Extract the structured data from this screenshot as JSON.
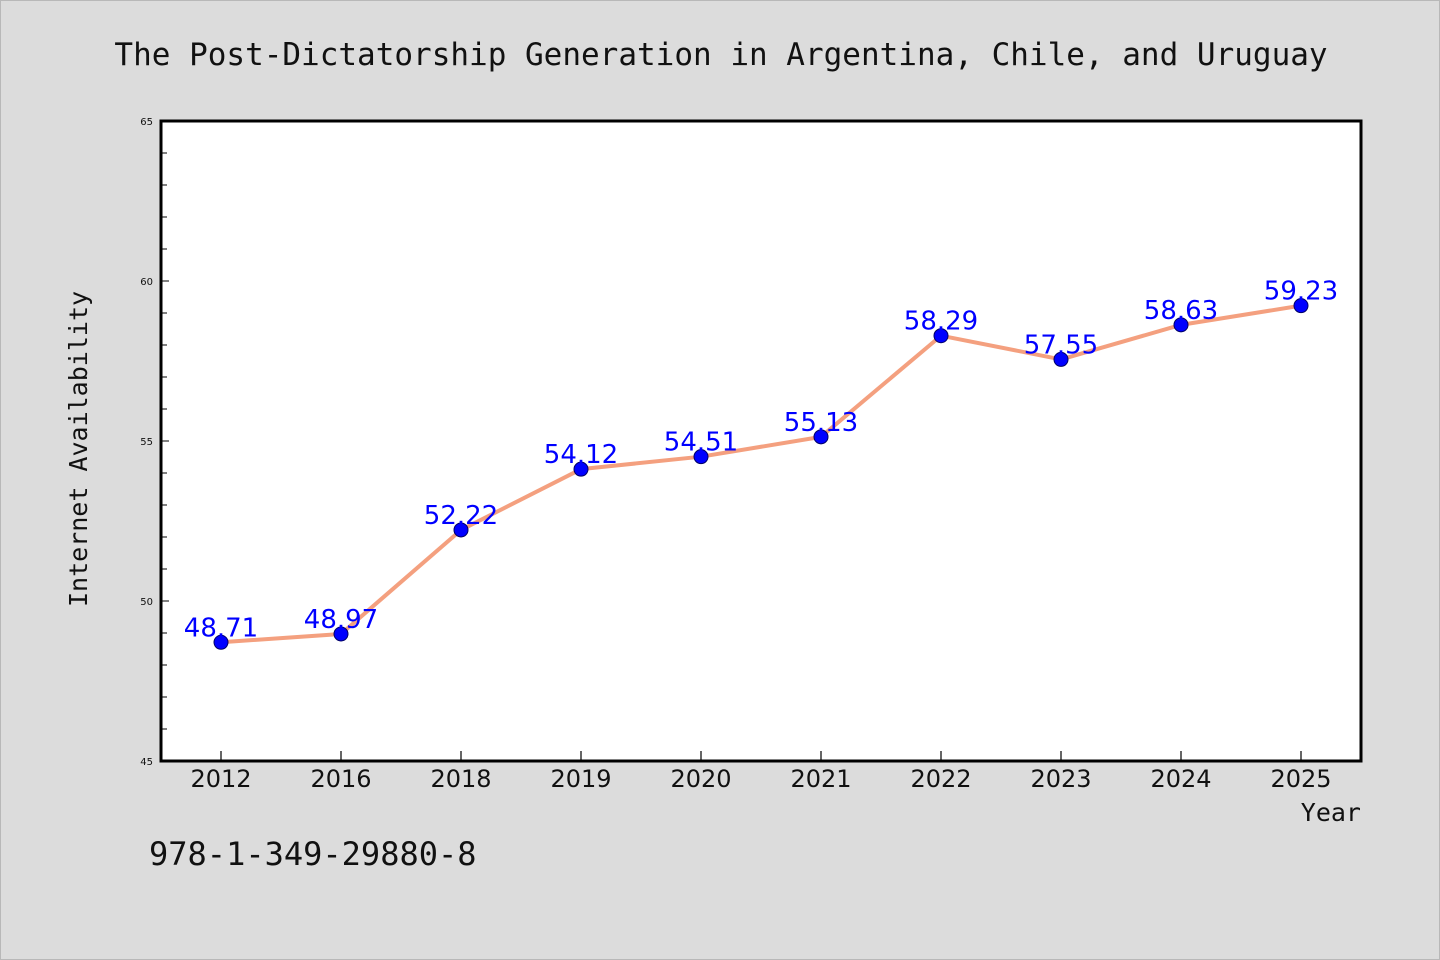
{
  "chart_data": {
    "type": "line",
    "title": "The Post-Dictatorship Generation in Argentina, Chile, and Uruguay",
    "xlabel": "Year",
    "ylabel": "Internet Availability",
    "categories": [
      "2012",
      "2016",
      "2018",
      "2019",
      "2020",
      "2021",
      "2022",
      "2023",
      "2024",
      "2025"
    ],
    "series": [
      {
        "values": [
          48.71,
          48.97,
          52.22,
          54.12,
          54.51,
          55.13,
          58.29,
          57.55,
          58.63,
          59.23
        ],
        "labels": [
          "48.71",
          "48.97",
          "52.22",
          "54.12",
          "54.51",
          "55.13",
          "58.29",
          "57.55",
          "58.63",
          "59.23"
        ]
      }
    ],
    "ylim": [
      45,
      65
    ],
    "yticks": [
      "45",
      "50",
      "55",
      "60",
      "65"
    ],
    "grid": false,
    "legend": "none",
    "colors": {
      "line": "#f4a07f",
      "marker": "#0000ff",
      "data_label": "#0000ff",
      "background": "#dcdcdc",
      "plot_area": "#ffffff"
    }
  },
  "footer": {
    "isbn": "978-1-349-29880-8"
  }
}
